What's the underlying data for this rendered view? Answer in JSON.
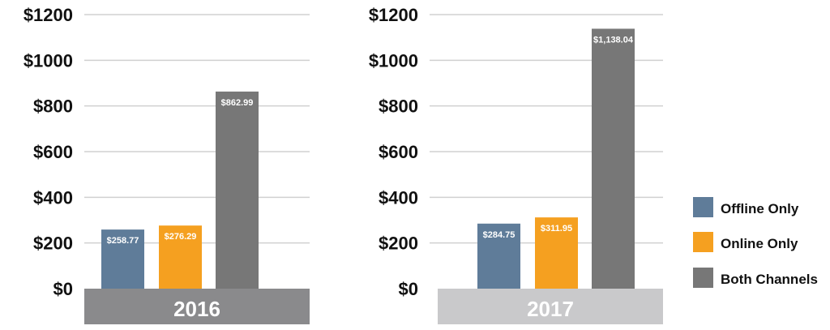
{
  "chart_data": [
    {
      "type": "bar",
      "title": "2016",
      "categories": [
        "Offline Only",
        "Online Only",
        "Both Channels"
      ],
      "values": [
        258.77,
        276.29,
        862.99
      ],
      "value_labels": [
        "$258.77",
        "$276.29",
        "$862.99"
      ],
      "ylim": [
        0,
        1200
      ],
      "yticks": [
        0,
        200,
        400,
        600,
        800,
        1000,
        1200
      ],
      "ytick_labels": [
        "$0",
        "$200",
        "$400",
        "$600",
        "$800",
        "$1000",
        "$1200"
      ],
      "xlabel": "2016",
      "ylabel": "",
      "grid": true,
      "label_band_color": "#8a8a8c"
    },
    {
      "type": "bar",
      "title": "2017",
      "categories": [
        "Offline Only",
        "Online Only",
        "Both Channels"
      ],
      "values": [
        284.75,
        311.95,
        1138.04
      ],
      "value_labels": [
        "$284.75",
        "$311.95",
        "$1,138.04"
      ],
      "ylim": [
        0,
        1200
      ],
      "yticks": [
        0,
        200,
        400,
        600,
        800,
        1000,
        1200
      ],
      "ytick_labels": [
        "$0",
        "$200",
        "$400",
        "$600",
        "$800",
        "$1000",
        "$1200"
      ],
      "xlabel": "2017",
      "ylabel": "",
      "grid": true,
      "label_band_color": "#c9c9cb"
    }
  ],
  "legend": {
    "placement": "right",
    "items": [
      {
        "label": "Offline Only",
        "color": "#5f7c99"
      },
      {
        "label": "Online Only",
        "color": "#f5a020"
      },
      {
        "label": "Both Channels",
        "color": "#777777"
      }
    ]
  },
  "colors": {
    "gridline": "#d0d0d0",
    "text": "#111111",
    "bar_label_text": "#ffffff"
  }
}
